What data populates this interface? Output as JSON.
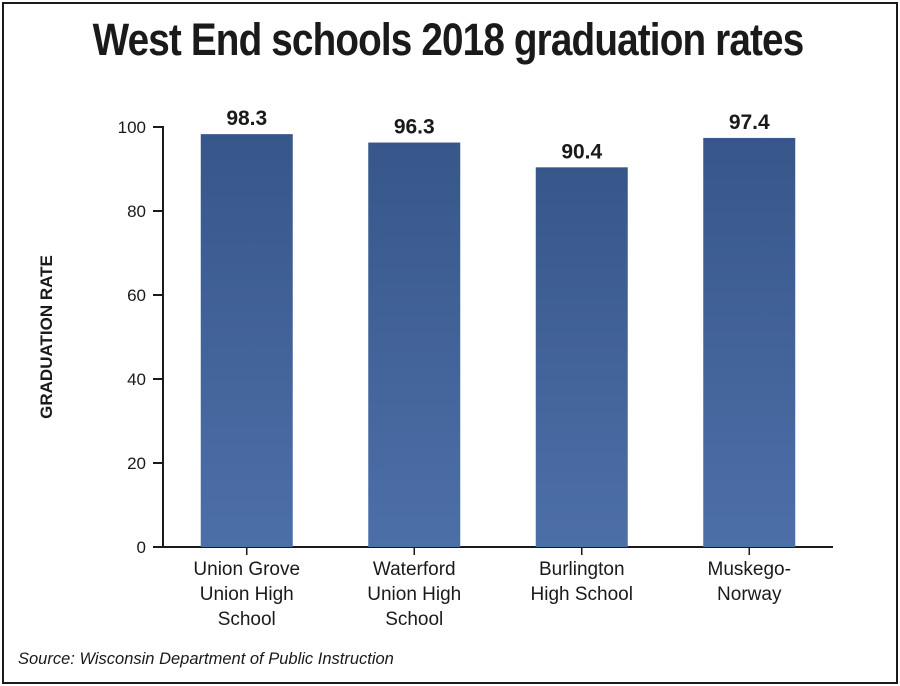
{
  "title": "West End schools 2018 graduation rates",
  "source": "Source: Wisconsin Department of Public Instruction",
  "colors": {
    "bar_top": "#37578a",
    "bar_bottom": "#4d6fa8",
    "axis": "#1a1a1a"
  },
  "chart_data": {
    "type": "bar",
    "title": "West End schools 2018 graduation rates",
    "xlabel": "",
    "ylabel": "GRADUATION RATE",
    "ylim": [
      0,
      100
    ],
    "yticks": [
      0,
      20,
      40,
      60,
      80,
      100
    ],
    "grid": false,
    "categories": [
      [
        "Union Grove",
        "Union High",
        "School"
      ],
      [
        "Waterford",
        "Union High",
        "School"
      ],
      [
        "Burlington",
        "High School"
      ],
      [
        "Muskego-",
        "Norway"
      ]
    ],
    "values": [
      98.3,
      96.3,
      90.4,
      97.4
    ],
    "value_labels": [
      "98.3",
      "96.3",
      "90.4",
      "97.4"
    ]
  }
}
